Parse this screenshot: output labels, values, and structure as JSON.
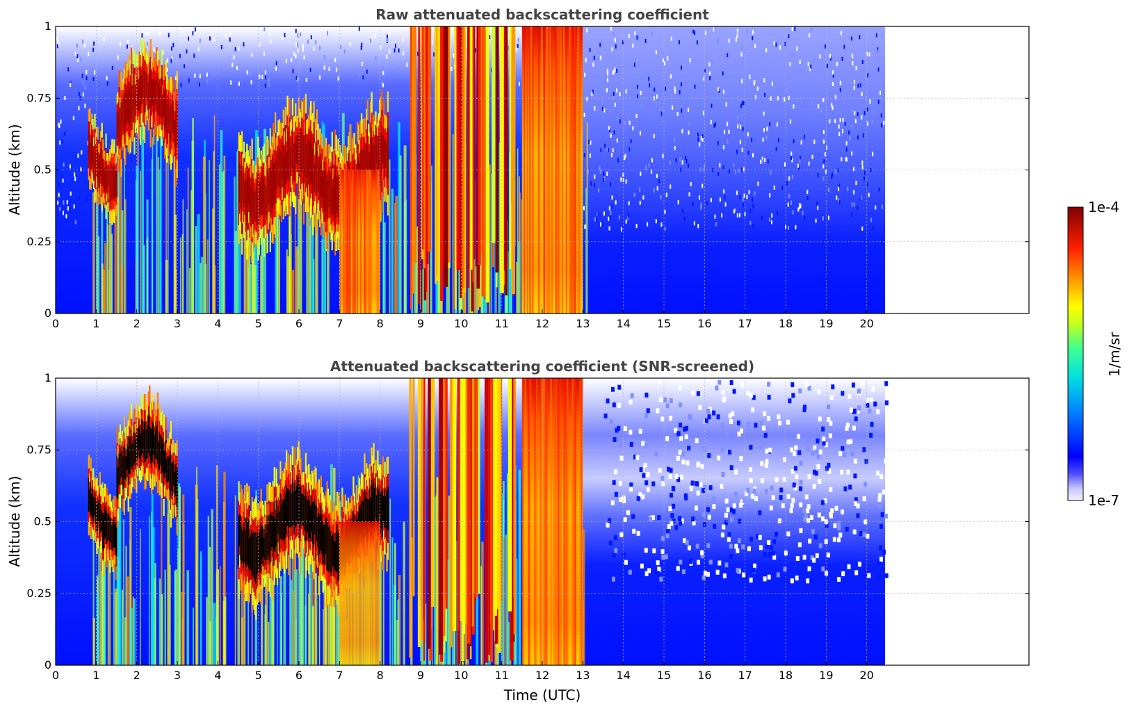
{
  "figure": {
    "colorbar": {
      "max_label": "1e-4",
      "min_label": "1e-7",
      "unit_label": "1/m/sr",
      "scale": "log",
      "range": [
        1e-07,
        0.0001
      ],
      "colormap": "jet"
    }
  },
  "chart_data": [
    {
      "type": "heatmap",
      "title": "Raw attenuated backscattering coefficient",
      "xlabel": "",
      "ylabel": "Altitude (km)",
      "xlim": [
        0,
        24
      ],
      "ylim": [
        0,
        1
      ],
      "x_ticks": [
        "0",
        "1",
        "2",
        "3",
        "4",
        "5",
        "6",
        "7",
        "8",
        "9",
        "10",
        "11",
        "12",
        "13",
        "14",
        "15",
        "16",
        "17",
        "18",
        "19",
        "20"
      ],
      "y_ticks": [
        "0",
        "0.25",
        "0.5",
        "0.75",
        "1"
      ],
      "grid": true,
      "data_extent_x": [
        0,
        20.45
      ],
      "features": [
        {
          "kind": "cloud_layer",
          "x_range": [
            0.8,
            1.5
          ],
          "altitude_km": [
            0.4,
            0.65
          ],
          "level": "1e-4"
        },
        {
          "kind": "cloud_layer",
          "x_range": [
            1.5,
            3.0
          ],
          "altitude_km": [
            0.55,
            0.85
          ],
          "level": "1e-4"
        },
        {
          "kind": "cloud_layer",
          "x_range": [
            4.5,
            8.2
          ],
          "altitude_km": [
            0.3,
            0.65
          ],
          "level": "1e-4"
        },
        {
          "kind": "precipitation",
          "x_range": [
            7.0,
            8.0
          ],
          "altitude_km": [
            0,
            0.5
          ],
          "level": "1e-5"
        },
        {
          "kind": "precipitation",
          "x_range": [
            11.5,
            13.0
          ],
          "altitude_km": [
            0,
            1
          ],
          "level": "1e-5"
        },
        {
          "kind": "boundary_layer",
          "x_range": [
            0,
            20.45
          ],
          "altitude_km": [
            0,
            0.3
          ],
          "level": "1e-6"
        }
      ]
    },
    {
      "type": "heatmap",
      "title": "Attenuated backscattering coefficient (SNR-screened)",
      "xlabel": "Time (UTC)",
      "ylabel": "Altitude (km)",
      "xlim": [
        0,
        24
      ],
      "ylim": [
        0,
        1
      ],
      "x_ticks": [
        "0",
        "1",
        "2",
        "3",
        "4",
        "5",
        "6",
        "7",
        "8",
        "9",
        "10",
        "11",
        "12",
        "13",
        "14",
        "15",
        "16",
        "17",
        "18",
        "19",
        "20"
      ],
      "y_ticks": [
        "0",
        "0.25",
        "0.5",
        "0.75",
        "1"
      ],
      "grid": true,
      "data_extent_x": [
        0,
        20.45
      ],
      "features": [
        {
          "kind": "saturated_cloud",
          "x_range": [
            0.8,
            1.5
          ],
          "altitude_km": [
            0.4,
            0.65
          ],
          "level": "1e-4"
        },
        {
          "kind": "saturated_cloud",
          "x_range": [
            1.5,
            3.0
          ],
          "altitude_km": [
            0.55,
            0.85
          ],
          "level": "1e-4"
        },
        {
          "kind": "saturated_cloud",
          "x_range": [
            4.5,
            8.2
          ],
          "altitude_km": [
            0.3,
            0.65
          ],
          "level": "1e-4"
        },
        {
          "kind": "precipitation",
          "x_range": [
            11.5,
            13.0
          ],
          "altitude_km": [
            0,
            1
          ],
          "level": "1e-5"
        },
        {
          "kind": "screened_noise",
          "x_range": [
            13.0,
            20.45
          ],
          "altitude_km": [
            0.3,
            1
          ],
          "level": "1e-7"
        }
      ]
    }
  ]
}
